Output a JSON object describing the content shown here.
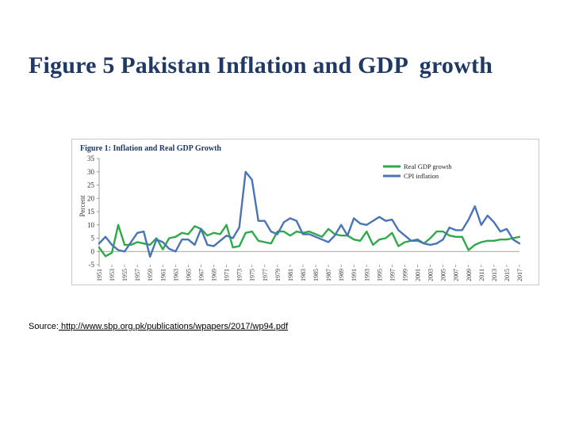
{
  "slide": {
    "title": "Figure 5 Pakistan Inflation and GDP  growth",
    "source_label": "Source:",
    "source_url": " http://www.sbp.org.pk/publications/wpapers/2017/wp94.pdf"
  },
  "chart_data": {
    "type": "line",
    "title": "Figure 1: Inflation and Real GDP Growth",
    "ylabel": "Percent",
    "xlabel": "",
    "ylim": [
      -5,
      35
    ],
    "yticks": [
      -5,
      0,
      5,
      10,
      15,
      20,
      25,
      30,
      35
    ],
    "grid": false,
    "legend": "top-right",
    "x": [
      1951,
      1952,
      1953,
      1954,
      1955,
      1956,
      1957,
      1958,
      1959,
      1960,
      1961,
      1962,
      1963,
      1964,
      1965,
      1966,
      1967,
      1968,
      1969,
      1970,
      1971,
      1972,
      1973,
      1974,
      1975,
      1976,
      1977,
      1978,
      1979,
      1980,
      1981,
      1982,
      1983,
      1984,
      1985,
      1986,
      1987,
      1988,
      1989,
      1990,
      1991,
      1992,
      1993,
      1994,
      1995,
      1996,
      1997,
      1998,
      1999,
      2000,
      2001,
      2002,
      2003,
      2004,
      2005,
      2006,
      2007,
      2008,
      2009,
      2010,
      2011,
      2012,
      2013,
      2014,
      2015,
      2016,
      2017
    ],
    "xtick_labels": [
      "1951",
      "1953",
      "1955",
      "1957",
      "1959",
      "1961",
      "1963",
      "1965",
      "1967",
      "1969",
      "1971",
      "1973",
      "1975",
      "1977",
      "1979",
      "1981",
      "1983",
      "1985",
      "1987",
      "1989",
      "1991",
      "1993",
      "1995",
      "1997",
      "1999",
      "2001",
      "2003",
      "2005",
      "2007",
      "2009",
      "2011",
      "2013",
      "2015",
      "2017"
    ],
    "series": [
      {
        "name": "Real GDP growth",
        "color": "#2eaa4a",
        "values": [
          1.5,
          -1.8,
          -0.5,
          10,
          2.5,
          2.5,
          3.5,
          3.0,
          2.5,
          5.0,
          0.8,
          5.0,
          5.5,
          7.0,
          6.5,
          9.5,
          8.5,
          6.0,
          7.0,
          6.5,
          10.0,
          1.5,
          2.0,
          7.0,
          7.5,
          4.0,
          3.5,
          3.0,
          7.5,
          7.5,
          6.0,
          7.5,
          7.0,
          7.5,
          6.5,
          5.5,
          8.5,
          6.5,
          6.0,
          6.0,
          4.5,
          4.0,
          7.5,
          2.5,
          4.5,
          5.0,
          7.0,
          2.0,
          3.5,
          4.0,
          4.0,
          3.0,
          5.0,
          7.5,
          7.5,
          6.0,
          5.5,
          5.5,
          0.5,
          2.5,
          3.5,
          4.0,
          4.0,
          4.5,
          4.5,
          5.0,
          5.5
        ]
      },
      {
        "name": "CPI inflation",
        "color": "#4a74b5",
        "values": [
          3.0,
          5.5,
          2.5,
          0.5,
          0.0,
          3.5,
          7.0,
          7.5,
          -2.0,
          4.5,
          3.5,
          1.0,
          0.0,
          4.5,
          4.5,
          2.5,
          8.5,
          2.5,
          2.0,
          4.0,
          6.0,
          5.0,
          9.0,
          30.0,
          27.0,
          11.5,
          11.5,
          7.5,
          6.5,
          11.0,
          12.5,
          11.5,
          6.5,
          6.5,
          5.5,
          4.5,
          3.5,
          6.0,
          10.0,
          6.0,
          12.5,
          10.5,
          10.0,
          11.5,
          13.0,
          11.5,
          12.0,
          8.0,
          6.0,
          4.0,
          4.5,
          3.0,
          2.5,
          3.0,
          4.5,
          9.0,
          8.0,
          8.0,
          12.0,
          17.0,
          10.0,
          13.5,
          11.0,
          7.5,
          8.5,
          4.5,
          3.0
        ]
      }
    ]
  }
}
